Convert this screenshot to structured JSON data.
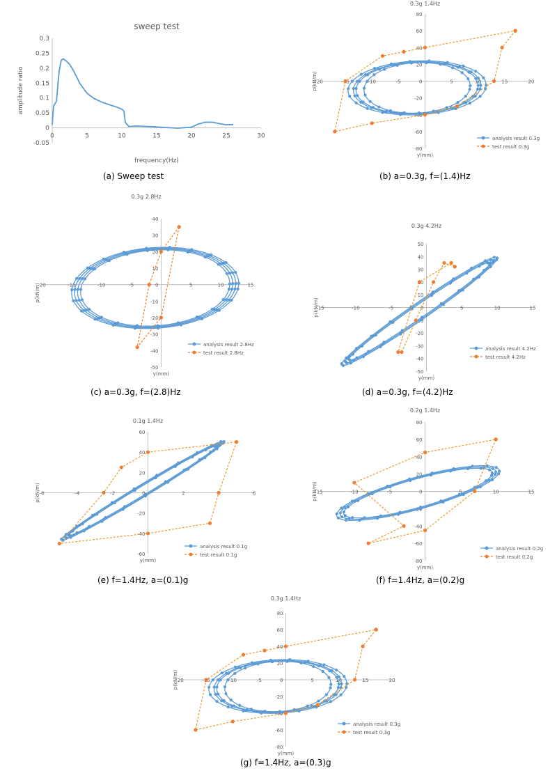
{
  "chart_data": [
    {
      "id": "a",
      "type": "line",
      "title": "sweep test",
      "xlabel": "frequency(Hz)",
      "ylabel": "amplitude ratio",
      "xlim": [
        0,
        30
      ],
      "ylim": [
        -0.05,
        0.3
      ],
      "xticks": [
        0,
        5,
        10,
        15,
        20,
        25,
        30
      ],
      "yticks": [
        -0.05,
        0,
        0.05,
        0.1,
        0.15,
        0.2,
        0.25,
        0.3
      ],
      "xtick_labels": [
        "0",
        "5",
        "10",
        "15",
        "20",
        "25",
        "30"
      ],
      "ytick_labels": [
        "-0.05",
        "0",
        "0.05",
        "0.1",
        "0.15",
        "0.2",
        "0.25",
        "0.3"
      ],
      "series": [
        {
          "color": "#5b9bd5",
          "x": [
            0,
            0.2,
            0.6,
            1.0,
            1.3,
            1.6,
            2.0,
            2.5,
            3.0,
            3.5,
            4.0,
            5.0,
            6.0,
            7.0,
            8.0,
            9.0,
            10.0,
            10.3,
            10.5,
            11,
            12,
            14,
            16,
            18,
            20,
            21,
            22,
            23,
            24,
            25,
            26
          ],
          "y": [
            0.01,
            0.07,
            0.085,
            0.19,
            0.23,
            0.235,
            0.225,
            0.21,
            0.19,
            0.17,
            0.15,
            0.12,
            0.1,
            0.085,
            0.075,
            0.07,
            0.065,
            0.06,
            0.02,
            0.003,
            0.002,
            0.002,
            0.003,
            0.003,
            0.005,
            0.012,
            0.015,
            0.016,
            0.015,
            0.014,
            0.014
          ]
        }
      ]
    },
    {
      "id": "b",
      "type": "line",
      "title": "0.3g 1.4Hz",
      "xlabel": "y(mm)",
      "ylabel": "p(kN/m)",
      "xlim": [
        -20,
        20
      ],
      "ylim": [
        -80,
        80
      ],
      "xticks": [
        -20,
        -15,
        -10,
        -5,
        0,
        5,
        10,
        15,
        20
      ],
      "yticks": [
        -80,
        -60,
        -40,
        -20,
        0,
        20,
        40,
        60,
        80
      ],
      "xtick_labels": [
        "-20",
        "-15",
        "-10",
        "-5",
        "0",
        "5",
        "10",
        "15",
        "20"
      ],
      "ytick_labels": [
        "-80",
        "-60",
        "-40",
        "-20",
        "0",
        "20",
        "40",
        "60",
        "80"
      ],
      "legend": [
        "analysis result 0.3g",
        "test result 0.3g"
      ],
      "series": [
        {
          "color": "#5b9bd5",
          "kind": "loops",
          "cx": -1.5,
          "cy": -8,
          "loops": [
            [
              10,
              30
            ],
            [
              12,
              31
            ],
            [
              13,
              32
            ],
            [
              11.5,
              30.5
            ]
          ],
          "tilt": 0.25
        },
        {
          "color": "#ed9a2b",
          "kind": "test",
          "x": [
            17,
            14.5,
            13,
            6,
            0,
            -10,
            -17,
            -15,
            -8,
            -4,
            0,
            17
          ],
          "y": [
            60,
            40,
            0,
            -30,
            -40,
            -50,
            -60,
            0,
            30,
            35,
            40,
            60
          ]
        }
      ]
    },
    {
      "id": "c",
      "type": "line",
      "title": "0.3g 2.8Hz",
      "xlabel": "y(mm)",
      "ylabel": "p(kN/m)",
      "xlim": [
        -20,
        15
      ],
      "ylim": [
        -50,
        40
      ],
      "xticks": [
        -20,
        -15,
        -10,
        -5,
        0,
        5,
        10,
        15
      ],
      "yticks": [
        -50,
        -40,
        -30,
        -20,
        -10,
        0,
        10,
        20,
        30,
        40
      ],
      "xtick_labels": [
        "-20",
        "-15",
        "-10",
        "-5",
        "0",
        "5",
        "10",
        "15"
      ],
      "ytick_labels": [
        "-50",
        "-40",
        "-30",
        "-20",
        "-10",
        "0",
        "10",
        "20",
        "30",
        "40"
      ],
      "legend": [
        "analysis result 2.8Hz",
        "test result 2.8Hz"
      ],
      "series": [
        {
          "color": "#5b9bd5",
          "kind": "loops",
          "cx": -1,
          "cy": -2,
          "loops": [
            [
              12.5,
              23
            ],
            [
              13,
              23.5
            ],
            [
              13.5,
              24
            ],
            [
              14,
              24.5
            ]
          ],
          "tilt": 0.2
        },
        {
          "color": "#ed7d31",
          "kind": "test",
          "x": [
            3,
            0,
            -2,
            -4,
            0,
            3
          ],
          "y": [
            35,
            20,
            0,
            -38,
            -20,
            35
          ]
        }
      ]
    },
    {
      "id": "d",
      "type": "line",
      "title": "0.3g 4.2Hz",
      "xlabel": "y(mm)",
      "ylabel": "p(kN/m)",
      "xlim": [
        -15,
        15
      ],
      "ylim": [
        -50,
        50
      ],
      "xticks": [
        -15,
        -10,
        -5,
        0,
        5,
        10,
        15
      ],
      "yticks": [
        -50,
        -40,
        -30,
        -20,
        -10,
        0,
        10,
        20,
        30,
        40,
        50
      ],
      "xtick_labels": [
        "-15",
        "-10",
        "-5",
        "0",
        "5",
        "10",
        "15"
      ],
      "ytick_labels": [
        "-50",
        "-40",
        "-30",
        "-20",
        "-10",
        "0",
        "10",
        "20",
        "30",
        "40",
        "50"
      ],
      "legend": [
        "analysis result 4.2Hz",
        "test result 4.2Hz"
      ],
      "series": [
        {
          "color": "#5b9bd5",
          "kind": "loops",
          "cx": -1,
          "cy": -3,
          "loops": [
            [
              10,
              6
            ],
            [
              10.5,
              7
            ],
            [
              11,
              8
            ]
          ],
          "tilt": 3.8
        },
        {
          "color": "#ed9a2b",
          "kind": "test",
          "x": [
            4,
            2.5,
            1,
            -1.5,
            -3.5,
            -4,
            -1,
            3.5,
            4
          ],
          "y": [
            32,
            35,
            20,
            -10,
            -35,
            -35,
            20,
            35,
            32
          ]
        }
      ]
    },
    {
      "id": "e",
      "type": "line",
      "title": "0.1g 1.4Hz",
      "xlabel": "y(mm)",
      "ylabel": "p(kN/m)",
      "xlim": [
        -6,
        6
      ],
      "ylim": [
        -60,
        60
      ],
      "xticks": [
        -6,
        -4,
        -2,
        0,
        2,
        4,
        6
      ],
      "yticks": [
        -60,
        -40,
        -20,
        0,
        20,
        40,
        60
      ],
      "xtick_labels": [
        "-6",
        "-4",
        "-2",
        "0",
        "2",
        "4",
        "6"
      ],
      "ytick_labels": [
        "-60",
        "-40",
        "-20",
        "0",
        "20",
        "40",
        "60"
      ],
      "legend": [
        "analysis result 0.1g",
        "test result 0.1g"
      ],
      "series": [
        {
          "color": "#5b9bd5",
          "kind": "loops",
          "cx": -0.3,
          "cy": 2,
          "loops": [
            [
              4.2,
              5
            ],
            [
              4.4,
              6
            ],
            [
              4.6,
              7
            ]
          ],
          "tilt": 10.5
        },
        {
          "color": "#ed9a2b",
          "kind": "test",
          "x": [
            5,
            4,
            3.5,
            0,
            -5,
            -2.5,
            -1.5,
            0,
            5
          ],
          "y": [
            50,
            0,
            -30,
            -40,
            -50,
            0,
            25,
            40,
            50
          ]
        }
      ]
    },
    {
      "id": "f",
      "type": "line",
      "title": "0.2g 1.4Hz",
      "xlabel": "y(mm)",
      "ylabel": "p(kN/m)",
      "xlim": [
        -15,
        15
      ],
      "ylim": [
        -80,
        80
      ],
      "xticks": [
        -15,
        -10,
        -5,
        0,
        5,
        10,
        15
      ],
      "yticks": [
        -80,
        -60,
        -40,
        -20,
        0,
        20,
        40,
        60,
        80
      ],
      "xtick_labels": [
        "-15",
        "-10",
        "-5",
        "0",
        "5",
        "10",
        "15"
      ],
      "ytick_labels": [
        "-80",
        "-60",
        "-40",
        "-20",
        "0",
        "20",
        "40",
        "60",
        "80"
      ],
      "legend": [
        "analysis result 0.2g",
        "test result 0.2g"
      ],
      "series": [
        {
          "color": "#5b9bd5",
          "kind": "loops",
          "cx": -1,
          "cy": -2,
          "loops": [
            [
              10.5,
              17
            ],
            [
              11,
              18
            ],
            [
              11.5,
              19
            ]
          ],
          "tilt": 2.2
        },
        {
          "color": "#ed9a2b",
          "kind": "test",
          "x": [
            10,
            7,
            0,
            -8,
            -3,
            -10,
            0,
            10
          ],
          "y": [
            60,
            0,
            -45,
            -60,
            -40,
            10,
            45,
            60
          ]
        }
      ]
    },
    {
      "id": "g",
      "type": "line",
      "title": "0.3g 1.4Hz",
      "xlabel": "y(mm)",
      "ylabel": "p(kN/m)",
      "xlim": [
        -20,
        20
      ],
      "ylim": [
        -80,
        80
      ],
      "xticks": [
        -20,
        -15,
        -10,
        -5,
        0,
        5,
        10,
        15,
        20
      ],
      "yticks": [
        -80,
        -60,
        -40,
        -20,
        0,
        20,
        40,
        60,
        80
      ],
      "xtick_labels": [
        "-20",
        "-15",
        "-10",
        "-5",
        "0",
        "5",
        "10",
        "15",
        "20"
      ],
      "ytick_labels": [
        "-80",
        "-60",
        "-40",
        "-20",
        "0",
        "20",
        "40",
        "60",
        "80"
      ],
      "legend": [
        "analysis result 0.3g",
        "test result 0.3g"
      ],
      "series": [
        {
          "color": "#5b9bd5",
          "kind": "loops",
          "cx": -1.5,
          "cy": -8,
          "loops": [
            [
              10,
              30
            ],
            [
              12,
              31
            ],
            [
              13,
              32
            ],
            [
              11.5,
              30.5
            ]
          ],
          "tilt": 0.25
        },
        {
          "color": "#ed9a2b",
          "kind": "test",
          "x": [
            17,
            14.5,
            13,
            6,
            0,
            -10,
            -17,
            -15,
            -8,
            -4,
            0,
            17
          ],
          "y": [
            60,
            40,
            0,
            -30,
            -40,
            -50,
            -60,
            0,
            30,
            35,
            40,
            60
          ]
        }
      ]
    }
  ],
  "captions": {
    "a": "(a)  Sweep  test",
    "b": "(b)  a=0.3g,  f=(1.4)Hz",
    "c": "(c)  a=0.3g,  f=(2.8)Hz",
    "d": "(d)  a=0.3g,  f=(4.2)Hz",
    "e": "(e)  f=1.4Hz,  a=(0.1)g",
    "f": "(f)  f=1.4Hz,  a=(0.2)g",
    "g": "(g)  f=1.4Hz,  a=(0.3)g"
  }
}
